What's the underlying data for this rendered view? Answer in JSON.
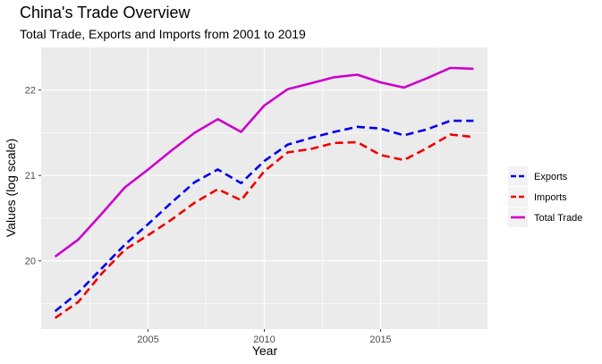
{
  "chart_data": {
    "type": "line",
    "title": "China's Trade Overview",
    "subtitle": "Total Trade, Exports and Imports from 2001 to 2019",
    "xlabel": "Year",
    "ylabel": "Values (log scale)",
    "x": [
      2001,
      2002,
      2003,
      2004,
      2005,
      2006,
      2007,
      2008,
      2009,
      2010,
      2011,
      2012,
      2013,
      2014,
      2015,
      2016,
      2017,
      2018,
      2019
    ],
    "xlim": [
      2000.4,
      2019.6
    ],
    "ylim": [
      19.2,
      22.5
    ],
    "x_ticks": [
      2005,
      2010,
      2015
    ],
    "y_ticks": [
      20,
      21,
      22
    ],
    "grid": true,
    "legend_position": "right",
    "series": [
      {
        "name": "Exports",
        "color": "#0000ee",
        "dash": "dashed",
        "values": [
          19.41,
          19.63,
          19.91,
          20.19,
          20.43,
          20.68,
          20.92,
          21.07,
          20.91,
          21.17,
          21.36,
          21.44,
          21.51,
          21.57,
          21.55,
          21.47,
          21.54,
          21.64,
          21.64
        ]
      },
      {
        "name": "Imports",
        "color": "#ee0000",
        "dash": "dashed",
        "values": [
          19.33,
          19.52,
          19.85,
          20.13,
          20.3,
          20.48,
          20.68,
          20.84,
          20.71,
          21.05,
          21.27,
          21.31,
          21.38,
          21.39,
          21.24,
          21.18,
          21.32,
          21.48,
          21.45
        ]
      },
      {
        "name": "Total Trade",
        "color": "#cc00cc",
        "dash": "solid",
        "values": [
          20.05,
          20.25,
          20.55,
          20.86,
          21.07,
          21.29,
          21.5,
          21.66,
          21.51,
          21.82,
          22.01,
          22.08,
          22.15,
          22.18,
          22.09,
          22.03,
          22.14,
          22.26,
          22.25
        ]
      }
    ]
  }
}
